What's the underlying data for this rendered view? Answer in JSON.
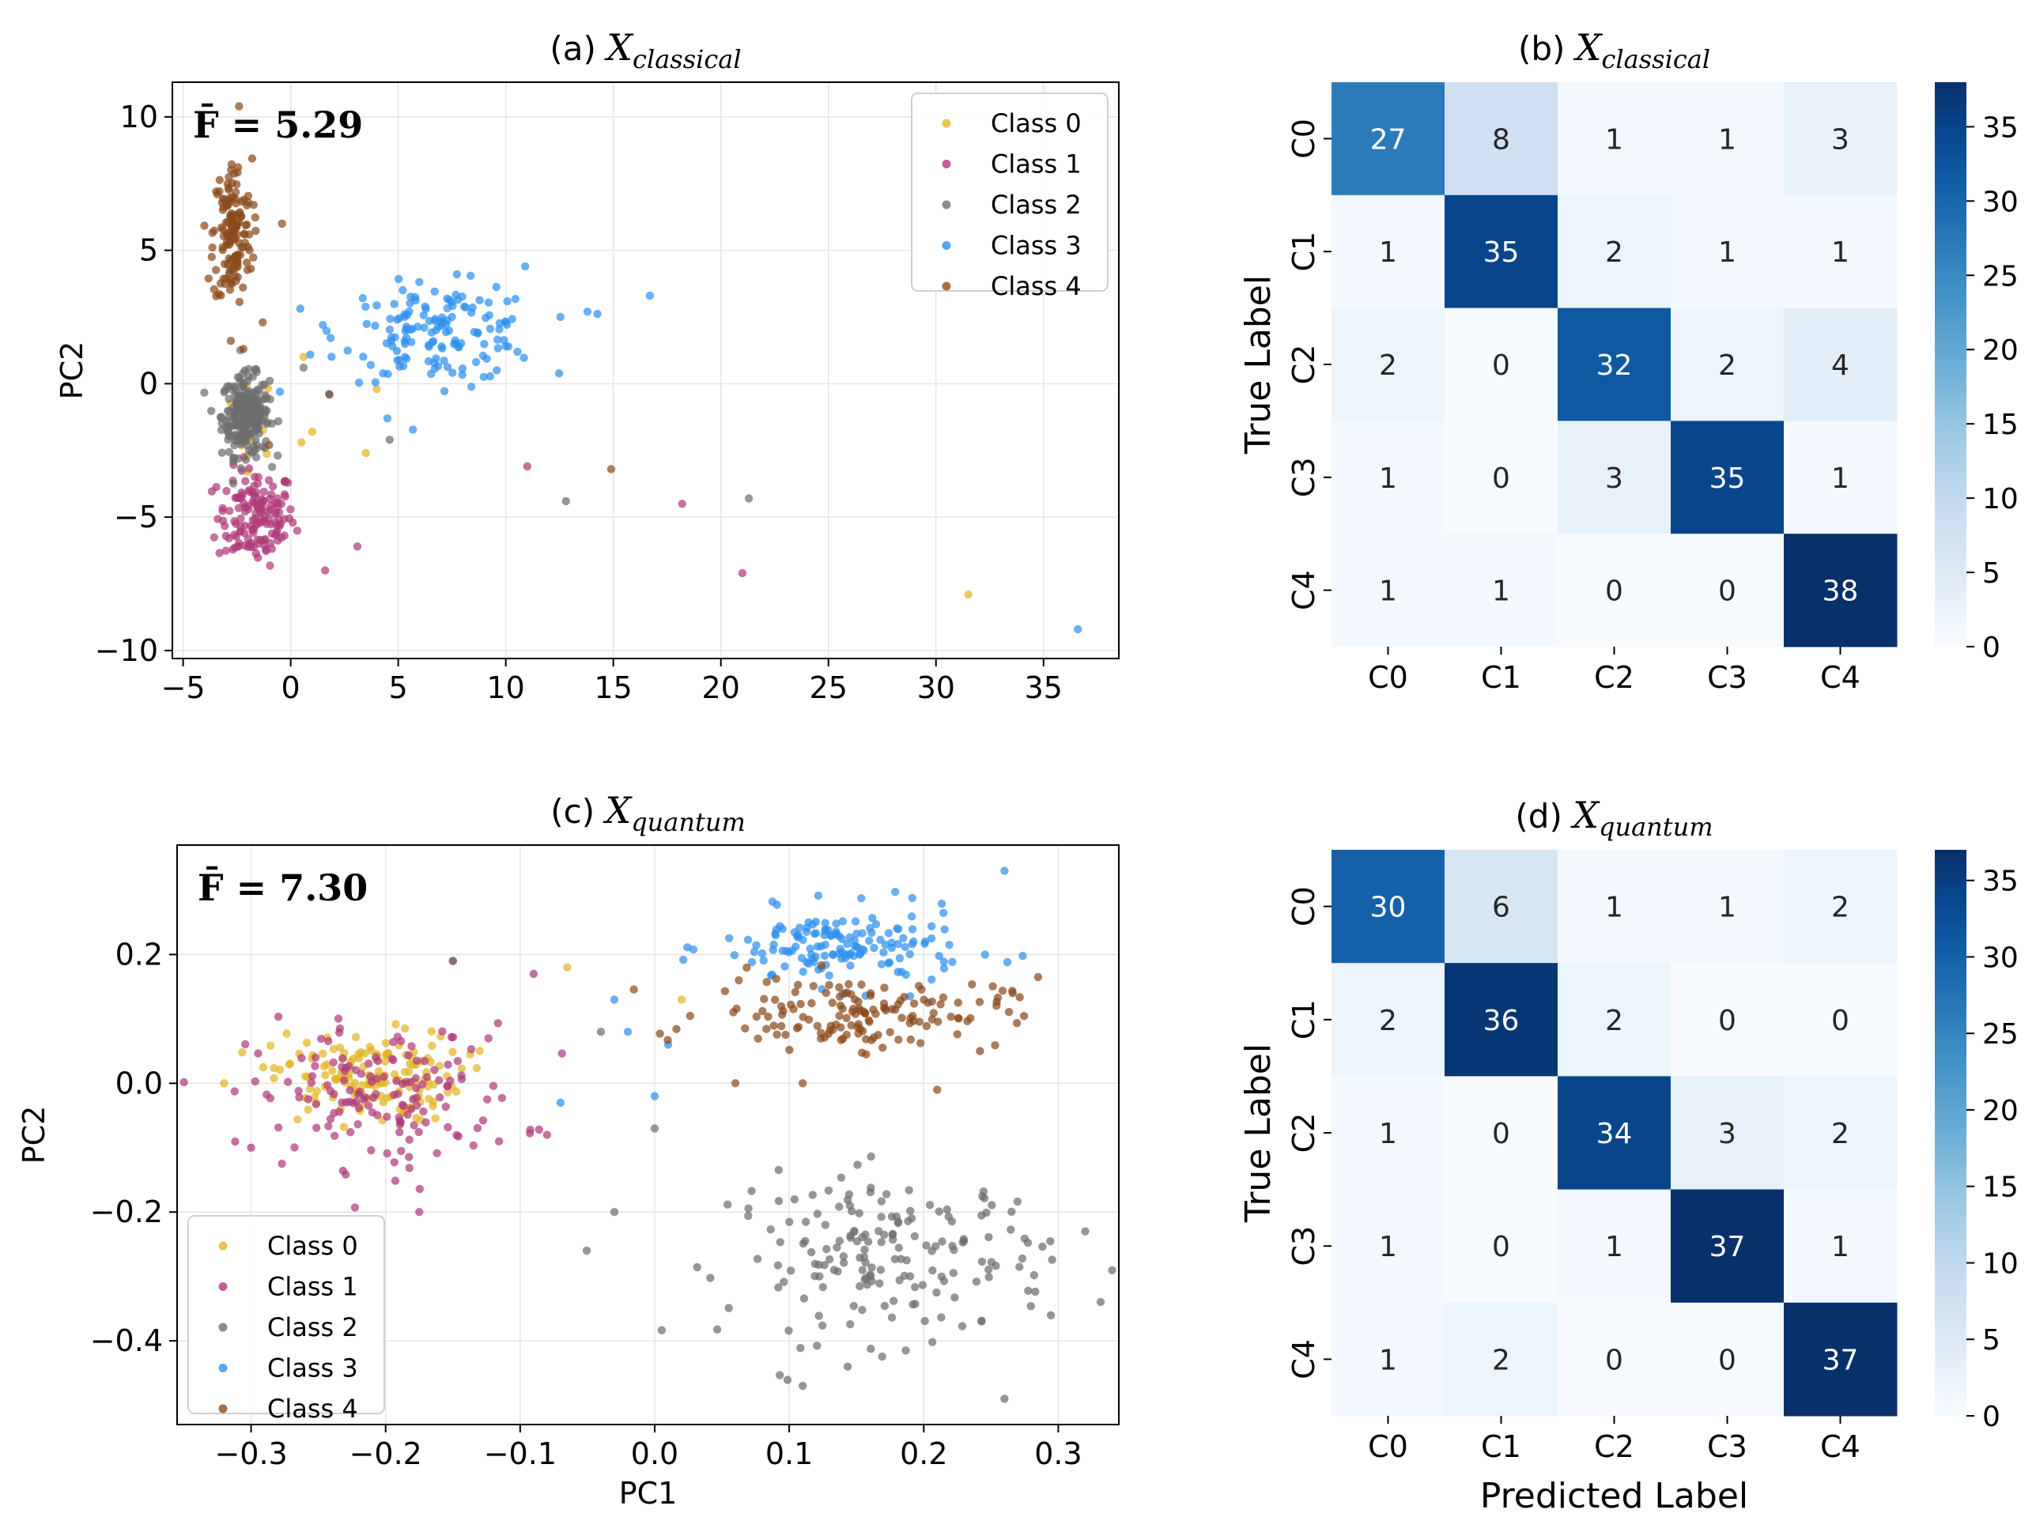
{
  "chart_data": [
    {
      "id": "a",
      "type": "scatter",
      "title_prefix": "(a) ",
      "title_var": "X",
      "title_sub": "classical",
      "annotation": "F̄ = 5.29",
      "xlabel": "",
      "ylabel": "PC2",
      "xlim": [
        -5.5,
        38.5
      ],
      "ylim": [
        -10.3,
        11.3
      ],
      "xticks": [
        -5,
        0,
        5,
        10,
        15,
        20,
        25,
        30,
        35
      ],
      "xtick_labels": [
        "−5",
        "0",
        "5",
        "10",
        "15",
        "20",
        "25",
        "30",
        "35"
      ],
      "yticks": [
        -10,
        -5,
        0,
        5,
        10
      ],
      "ytick_labels": [
        "−10",
        "−5",
        "0",
        "5",
        "10"
      ],
      "legend_position": "top-right",
      "series": [
        {
          "name": "Class 0",
          "color": "#e3b524",
          "clusters": [
            {
              "cx": -1.8,
              "cy": -1.2,
              "sx": 0.6,
              "sy": 0.8,
              "n": 25
            }
          ],
          "points": [
            [
              0.5,
              -2.2
            ],
            [
              1.0,
              -1.8
            ],
            [
              3.5,
              -2.6
            ],
            [
              31.5,
              -7.9
            ],
            [
              4.0,
              -0.2
            ],
            [
              0.6,
              1.0
            ]
          ]
        },
        {
          "name": "Class 1",
          "color": "#b03a7a",
          "clusters": [
            {
              "cx": -1.6,
              "cy": -5.0,
              "sx": 0.9,
              "sy": 0.9,
              "n": 150
            }
          ],
          "points": [
            [
              11.0,
              -3.1
            ],
            [
              18.2,
              -4.5
            ],
            [
              21.0,
              -7.1
            ],
            [
              3.1,
              -6.1
            ],
            [
              1.6,
              -7.0
            ]
          ]
        },
        {
          "name": "Class 2",
          "color": "#6e6e6e",
          "clusters": [
            {
              "cx": -2.1,
              "cy": -1.2,
              "sx": 0.55,
              "sy": 0.75,
              "n": 240
            }
          ],
          "points": [
            [
              12.8,
              -4.4
            ],
            [
              21.3,
              -4.3
            ],
            [
              4.6,
              -2.1
            ],
            [
              0.6,
              0.6
            ]
          ]
        },
        {
          "name": "Class 3",
          "color": "#2e90ef",
          "clusters": [
            {
              "cx": 7.0,
              "cy": 1.9,
              "sx": 2.3,
              "sy": 0.9,
              "n": 150
            }
          ],
          "points": [
            [
              36.6,
              -9.2
            ],
            [
              16.7,
              3.3
            ],
            [
              13.8,
              2.7
            ],
            [
              4.5,
              -1.3
            ],
            [
              -0.5,
              -0.3
            ],
            [
              1.5,
              2.2
            ],
            [
              10.9,
              4.4
            ]
          ]
        },
        {
          "name": "Class 4",
          "color": "#8a4b1c",
          "clusters": [
            {
              "cx": -2.7,
              "cy": 5.6,
              "sx": 0.45,
              "sy": 1.4,
              "n": 150
            }
          ],
          "points": [
            [
              -2.4,
              10.4
            ],
            [
              -0.4,
              6.0
            ],
            [
              -2.2,
              1.3
            ],
            [
              -1.0,
              -2.3
            ],
            [
              1.8,
              -0.4
            ],
            [
              14.9,
              -3.2
            ],
            [
              -1.3,
              2.3
            ]
          ]
        }
      ]
    },
    {
      "id": "b",
      "type": "heatmap",
      "title_prefix": "(b) ",
      "title_var": "X",
      "title_sub": "classical",
      "ylabel": "True Label",
      "xlabel": "",
      "row_labels": [
        "C0",
        "C1",
        "C2",
        "C3",
        "C4"
      ],
      "col_labels": [
        "C0",
        "C1",
        "C2",
        "C3",
        "C4"
      ],
      "matrix": [
        [
          27,
          8,
          1,
          1,
          3
        ],
        [
          1,
          35,
          2,
          1,
          1
        ],
        [
          2,
          0,
          32,
          2,
          4
        ],
        [
          1,
          0,
          3,
          35,
          1
        ],
        [
          1,
          1,
          0,
          0,
          38
        ]
      ],
      "colorbar_ticks": [
        0,
        5,
        10,
        15,
        20,
        25,
        30,
        35
      ],
      "colorbar_range": [
        0,
        38
      ],
      "colormap": "Blues"
    },
    {
      "id": "c",
      "type": "scatter",
      "title_prefix": "(c) ",
      "title_var": "X",
      "title_sub": "quantum",
      "annotation": "F̄ = 7.30",
      "xlabel": "PC1",
      "ylabel": "PC2",
      "xlim": [
        -0.355,
        0.345
      ],
      "ylim": [
        -0.53,
        0.37
      ],
      "xticks": [
        -0.3,
        -0.2,
        -0.1,
        0.0,
        0.1,
        0.2,
        0.3
      ],
      "xtick_labels": [
        "−0.3",
        "−0.2",
        "−0.1",
        "0.0",
        "0.1",
        "0.2",
        "0.3"
      ],
      "yticks": [
        -0.4,
        -0.2,
        0.0,
        0.2
      ],
      "ytick_labels": [
        "−0.4",
        "−0.2",
        "0.0",
        "0.2"
      ],
      "legend_position": "bottom-left",
      "series": [
        {
          "name": "Class 0",
          "color": "#e3b524",
          "clusters": [
            {
              "cx": -0.215,
              "cy": 0.01,
              "sx": 0.035,
              "sy": 0.035,
              "n": 150
            }
          ],
          "points": [
            [
              -0.32,
              0.0
            ],
            [
              -0.065,
              0.18
            ],
            [
              0.02,
              0.13
            ],
            [
              -0.13,
              0.05
            ]
          ]
        },
        {
          "name": "Class 1",
          "color": "#b03a7a",
          "clusters": [
            {
              "cx": -0.2,
              "cy": -0.02,
              "sx": 0.05,
              "sy": 0.055,
              "n": 150
            }
          ],
          "points": [
            [
              -0.3,
              -0.1
            ],
            [
              -0.09,
              0.17
            ],
            [
              -0.175,
              -0.2
            ],
            [
              -0.15,
              0.19
            ],
            [
              -0.08,
              -0.08
            ]
          ]
        },
        {
          "name": "Class 2",
          "color": "#6e6e6e",
          "clusters": [
            {
              "cx": 0.175,
              "cy": -0.27,
              "sx": 0.06,
              "sy": 0.065,
              "n": 180
            }
          ],
          "points": [
            [
              -0.15,
              0.19
            ],
            [
              -0.04,
              0.08
            ],
            [
              -0.03,
              -0.2
            ],
            [
              0.0,
              -0.07
            ],
            [
              0.26,
              -0.49
            ],
            [
              0.32,
              -0.23
            ],
            [
              0.11,
              -0.47
            ]
          ]
        },
        {
          "name": "Class 3",
          "color": "#2e90ef",
          "clusters": [
            {
              "cx": 0.14,
              "cy": 0.21,
              "sx": 0.045,
              "sy": 0.03,
              "n": 150
            }
          ],
          "points": [
            [
              -0.03,
              0.13
            ],
            [
              -0.02,
              0.08
            ],
            [
              0.0,
              -0.02
            ],
            [
              -0.07,
              -0.03
            ],
            [
              0.26,
              0.33
            ],
            [
              0.01,
              0.06
            ]
          ]
        },
        {
          "name": "Class 4",
          "color": "#8a4b1c",
          "clusters": [
            {
              "cx": 0.15,
              "cy": 0.11,
              "sx": 0.055,
              "sy": 0.028,
              "n": 150
            }
          ],
          "points": [
            [
              0.285,
              0.165
            ],
            [
              0.06,
              0.0
            ],
            [
              0.21,
              -0.01
            ],
            [
              0.11,
              0.0
            ]
          ]
        }
      ]
    },
    {
      "id": "d",
      "type": "heatmap",
      "title_prefix": "(d) ",
      "title_var": "X",
      "title_sub": "quantum",
      "ylabel": "True Label",
      "xlabel": "Predicted Label",
      "row_labels": [
        "C0",
        "C1",
        "C2",
        "C3",
        "C4"
      ],
      "col_labels": [
        "C0",
        "C1",
        "C2",
        "C3",
        "C4"
      ],
      "matrix": [
        [
          30,
          6,
          1,
          1,
          2
        ],
        [
          2,
          36,
          2,
          0,
          0
        ],
        [
          1,
          0,
          34,
          3,
          2
        ],
        [
          1,
          0,
          1,
          37,
          1
        ],
        [
          1,
          2,
          0,
          0,
          37
        ]
      ],
      "colorbar_ticks": [
        0,
        5,
        10,
        15,
        20,
        25,
        30,
        35
      ],
      "colorbar_range": [
        0,
        37
      ],
      "colormap": "Blues"
    }
  ]
}
